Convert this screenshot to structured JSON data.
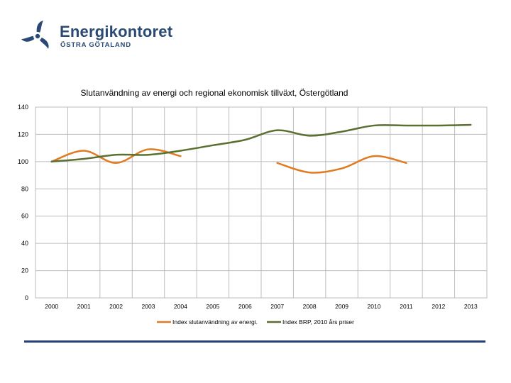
{
  "brand": {
    "name": "Energikontoret",
    "subtitle": "ÖSTRA GÖTALAND",
    "logo_icon": "propeller-icon",
    "color": "#2a4a73"
  },
  "chart_data": {
    "type": "line",
    "title": "Slutanvändning av energi  och regional ekonomisk tillväxt, Östergötland",
    "xlabel": "",
    "ylabel": "",
    "categories": [
      "2000",
      "2001",
      "2002",
      "2003",
      "2004",
      "2005",
      "2006",
      "2007",
      "2008",
      "2009",
      "2010",
      "2011",
      "2012",
      "2013"
    ],
    "ylim": [
      0,
      140
    ],
    "yticks": [
      0,
      20,
      40,
      60,
      80,
      100,
      120,
      140
    ],
    "grid": true,
    "legend_position": "bottom",
    "series": [
      {
        "name": "Index slutanvändning av energi.",
        "color": "#e07b22",
        "smooth": true,
        "values": [
          100,
          108,
          99,
          109,
          104,
          null,
          null,
          99,
          92,
          95,
          104,
          99,
          null,
          null
        ]
      },
      {
        "name": "Index BRP, 2010 års priser",
        "color": "#5a7030",
        "smooth": true,
        "values": [
          100,
          102,
          105,
          105,
          108,
          112,
          116,
          123,
          119,
          122,
          126.5,
          126.5,
          126.5,
          127
        ]
      }
    ]
  },
  "footer": {
    "rule_color": "#28407a"
  }
}
